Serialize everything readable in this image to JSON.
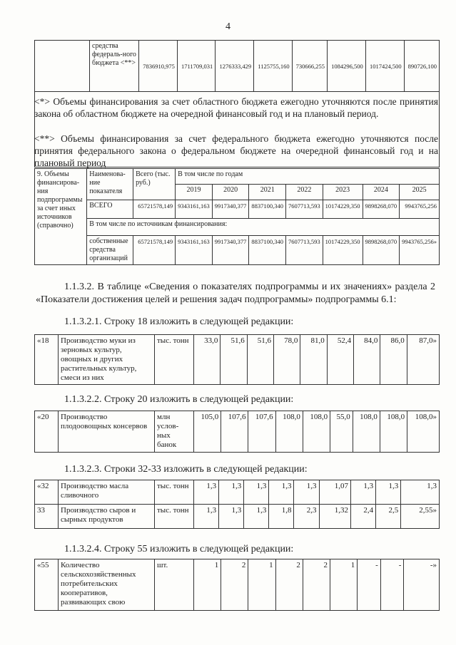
{
  "page_number": "4",
  "top_row": {
    "label": "средства федераль-ного бюджета <**>",
    "values": [
      "7836910,975",
      "1711709,031",
      "1276333,429",
      "1125755,160",
      "730666,255",
      "1084296,500",
      "1017424,500",
      "890726,100"
    ]
  },
  "notes": [
    "<*> Объемы финансирования за счет областного бюджета ежегодно уточняются после принятия закона об областном бюджете на очередной финансовый год и на плановый период.",
    "<**> Объемы финансирования за счет федерального бюджета ежегодно уточняются после принятия федерального закона о федеральном бюджете на очередной финансовый год и на плановый период"
  ],
  "section9": {
    "title": "9. Объемы финансирова-ния подпрограммы за счет иных источников (справочно)",
    "col_name": "Наименова-ние показателя",
    "col_total": "Всего (тыс. руб.)",
    "col_years": "В том числе по годам",
    "years": [
      "2019",
      "2020",
      "2021",
      "2022",
      "2023",
      "2024",
      "2025"
    ],
    "total_row": {
      "label": "ВСЕГО",
      "total": "65721578,149",
      "values": [
        "9343161,163",
        "9917340,377",
        "8837100,340",
        "7607713,593",
        "10174229,350",
        "9898268,070",
        "9943765,256"
      ]
    },
    "sources_label": "В том числе по источникам финансирования:",
    "own_row": {
      "label": "собственные средства организаций",
      "total": "65721578,149",
      "values": [
        "9343161,163",
        "9917340,377",
        "8837100,340",
        "7607713,593",
        "10174229,350",
        "9898268,070",
        "9943765,256»"
      ]
    }
  },
  "para_main": "1.1.3.2. В таблице «Сведения о показателях подпрограммы и их значениях» раздела 2 «Показатели достижения целей и решения задач подпрограммы» подпрограммы 6.1:",
  "blocks": [
    {
      "heading": "1.1.3.2.1. Строку 18 изложить в следующей редакции:",
      "rows": [
        {
          "num": "«18",
          "name": "Производство муки из зерновых культур, овощных и других растительных культур, смеси из них",
          "unit": "тыс. тонн",
          "values": [
            "33,0",
            "51,6",
            "51,6",
            "78,0",
            "81,0",
            "52,4",
            "84,0",
            "86,0",
            "87,0»"
          ]
        }
      ]
    },
    {
      "heading": "1.1.3.2.2. Строку 20 изложить в следующей редакции:",
      "rows": [
        {
          "num": "«20",
          "name": "Производство плодоовощных консервов",
          "unit": "млн услов-ных банок",
          "values": [
            "105,0",
            "107,6",
            "107,6",
            "108,0",
            "108,0",
            "55,0",
            "108,0",
            "108,0",
            "108,0»"
          ]
        }
      ]
    },
    {
      "heading": "1.1.3.2.3. Строки 32-33 изложить в следующей редакции:",
      "rows": [
        {
          "num": "«32",
          "name": "Производство масла сливочного",
          "unit": "тыс. тонн",
          "values": [
            "1,3",
            "1,3",
            "1,3",
            "1,3",
            "1,3",
            "1,07",
            "1,3",
            "1,3",
            "1,3"
          ]
        },
        {
          "num": "33",
          "name": "Производство сыров и сырных продуктов",
          "unit": "тыс. тонн",
          "values": [
            "1,3",
            "1,3",
            "1,3",
            "1,8",
            "2,3",
            "1,32",
            "2,4",
            "2,5",
            "2,55»"
          ]
        }
      ]
    },
    {
      "heading": "1.1.3.2.4. Строку 55 изложить в следующей редакции:",
      "rows": [
        {
          "num": "«55",
          "name": "Количество сельскохозяйственных потребительских кооперативов, развивающих свою",
          "unit": "шт.",
          "values": [
            "1",
            "2",
            "1",
            "2",
            "2",
            "1",
            "-",
            "-",
            "-»"
          ]
        }
      ]
    }
  ]
}
